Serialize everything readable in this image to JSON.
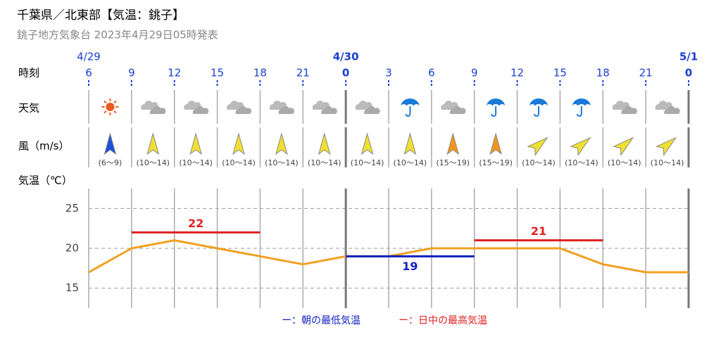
{
  "title": "千葉県／北東部【気温：銚子】",
  "subtitle": "銚子地方気象台 2023年4月29日05時発表",
  "chart_data": {
    "type": "line",
    "row_labels": [
      "時刻",
      "天気",
      "風（m/s）",
      "気温（℃）"
    ],
    "categories": [
      "6",
      "9",
      "12",
      "15",
      "18",
      "21",
      "0",
      "3",
      "6",
      "9",
      "12",
      "15",
      "18",
      "21",
      "0"
    ],
    "dates": [
      "4/29",
      null,
      null,
      null,
      null,
      null,
      "4/30",
      null,
      null,
      null,
      null,
      null,
      null,
      null,
      "5/1"
    ],
    "weather": [
      "sunny",
      "cloudy",
      "cloudy",
      "cloudy",
      "cloudy",
      "cloudy",
      "cloudy",
      "rain",
      "cloudy",
      "rain",
      "rain",
      "rain",
      "cloudy",
      "cloudy"
    ],
    "wind": {
      "labels": [
        "(6～9)",
        "(10～14)",
        "(10～14)",
        "(10～14)",
        "(10～14)",
        "(10～14)",
        "(10～14)",
        "(10～14)",
        "(15～19)",
        "(15～19)",
        "(10～14)",
        "(10～14)",
        "(10～14)",
        "(10～14)"
      ],
      "colors": [
        "#1f4fd8",
        "#f0e030",
        "#f0e030",
        "#f0e030",
        "#f0e030",
        "#f0e030",
        "#f0e030",
        "#f0e030",
        "#f0961e",
        "#f0961e",
        "#f0e030",
        "#f0e030",
        "#f0e030",
        "#f0e030"
      ],
      "directions": [
        "S",
        "S",
        "S",
        "S",
        "S",
        "S",
        "S",
        "S",
        "S",
        "S",
        "SW",
        "SW",
        "SW",
        "SW"
      ]
    },
    "values": [
      17,
      20,
      21,
      20,
      19,
      18,
      19,
      19,
      20,
      20,
      20,
      20,
      18,
      17,
      17
    ],
    "color": "#f0a020",
    "ylim": [
      12.5,
      27.5
    ],
    "yticks": [
      15,
      20,
      25
    ],
    "grid": true,
    "extremes": [
      {
        "value": 22,
        "from": 1,
        "to": 4,
        "color": "#e02020",
        "kind": "max"
      },
      {
        "value": 19,
        "from": 6,
        "to": 9,
        "color": "#1020c0",
        "kind": "min"
      },
      {
        "value": 21,
        "from": 9,
        "to": 12,
        "color": "#e02020",
        "kind": "max"
      }
    ],
    "legend": [
      {
        "label": "ー：朝の最低気温",
        "color": "#1020c0"
      },
      {
        "label": "ー：日中の最高気温",
        "color": "#e02020"
      }
    ]
  }
}
